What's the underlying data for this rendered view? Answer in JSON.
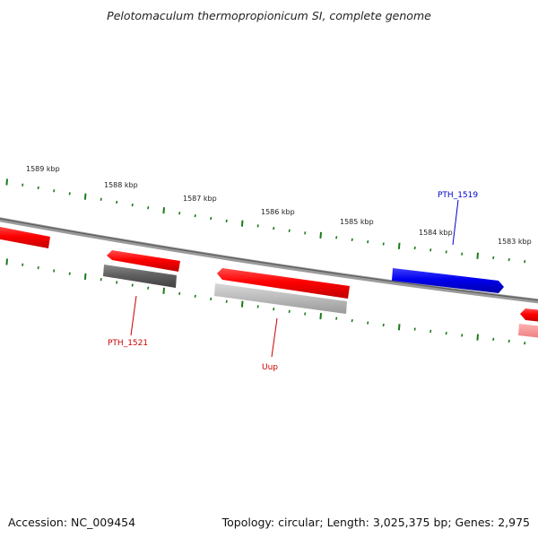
{
  "title": "Pelotomaculum thermopropionicum SI, complete genome",
  "footer": {
    "accession": "Accession: NC_009454",
    "stats": "Topology: circular; Length: 3,025,375 bp; Genes: 2,975"
  },
  "ticks": [
    "1589 kbp",
    "1588 kbp",
    "1587 kbp",
    "1586 kbp",
    "1585 kbp",
    "1584 kbp",
    "1583 kbp"
  ],
  "gene_labels": [
    {
      "text": "PTH_1519",
      "color": "#0000cc"
    },
    {
      "text": "PTH_1521",
      "color": "#cc0000"
    },
    {
      "text": "Uup",
      "color": "#cc0000"
    }
  ],
  "colors": {
    "backbone": "#808080",
    "tick": "#1a7a1a",
    "reverse_gene": "#ff0000",
    "forward_gene": "#0000ee",
    "blast_dark": "#606060",
    "blast_light": "#b8b8b8"
  }
}
